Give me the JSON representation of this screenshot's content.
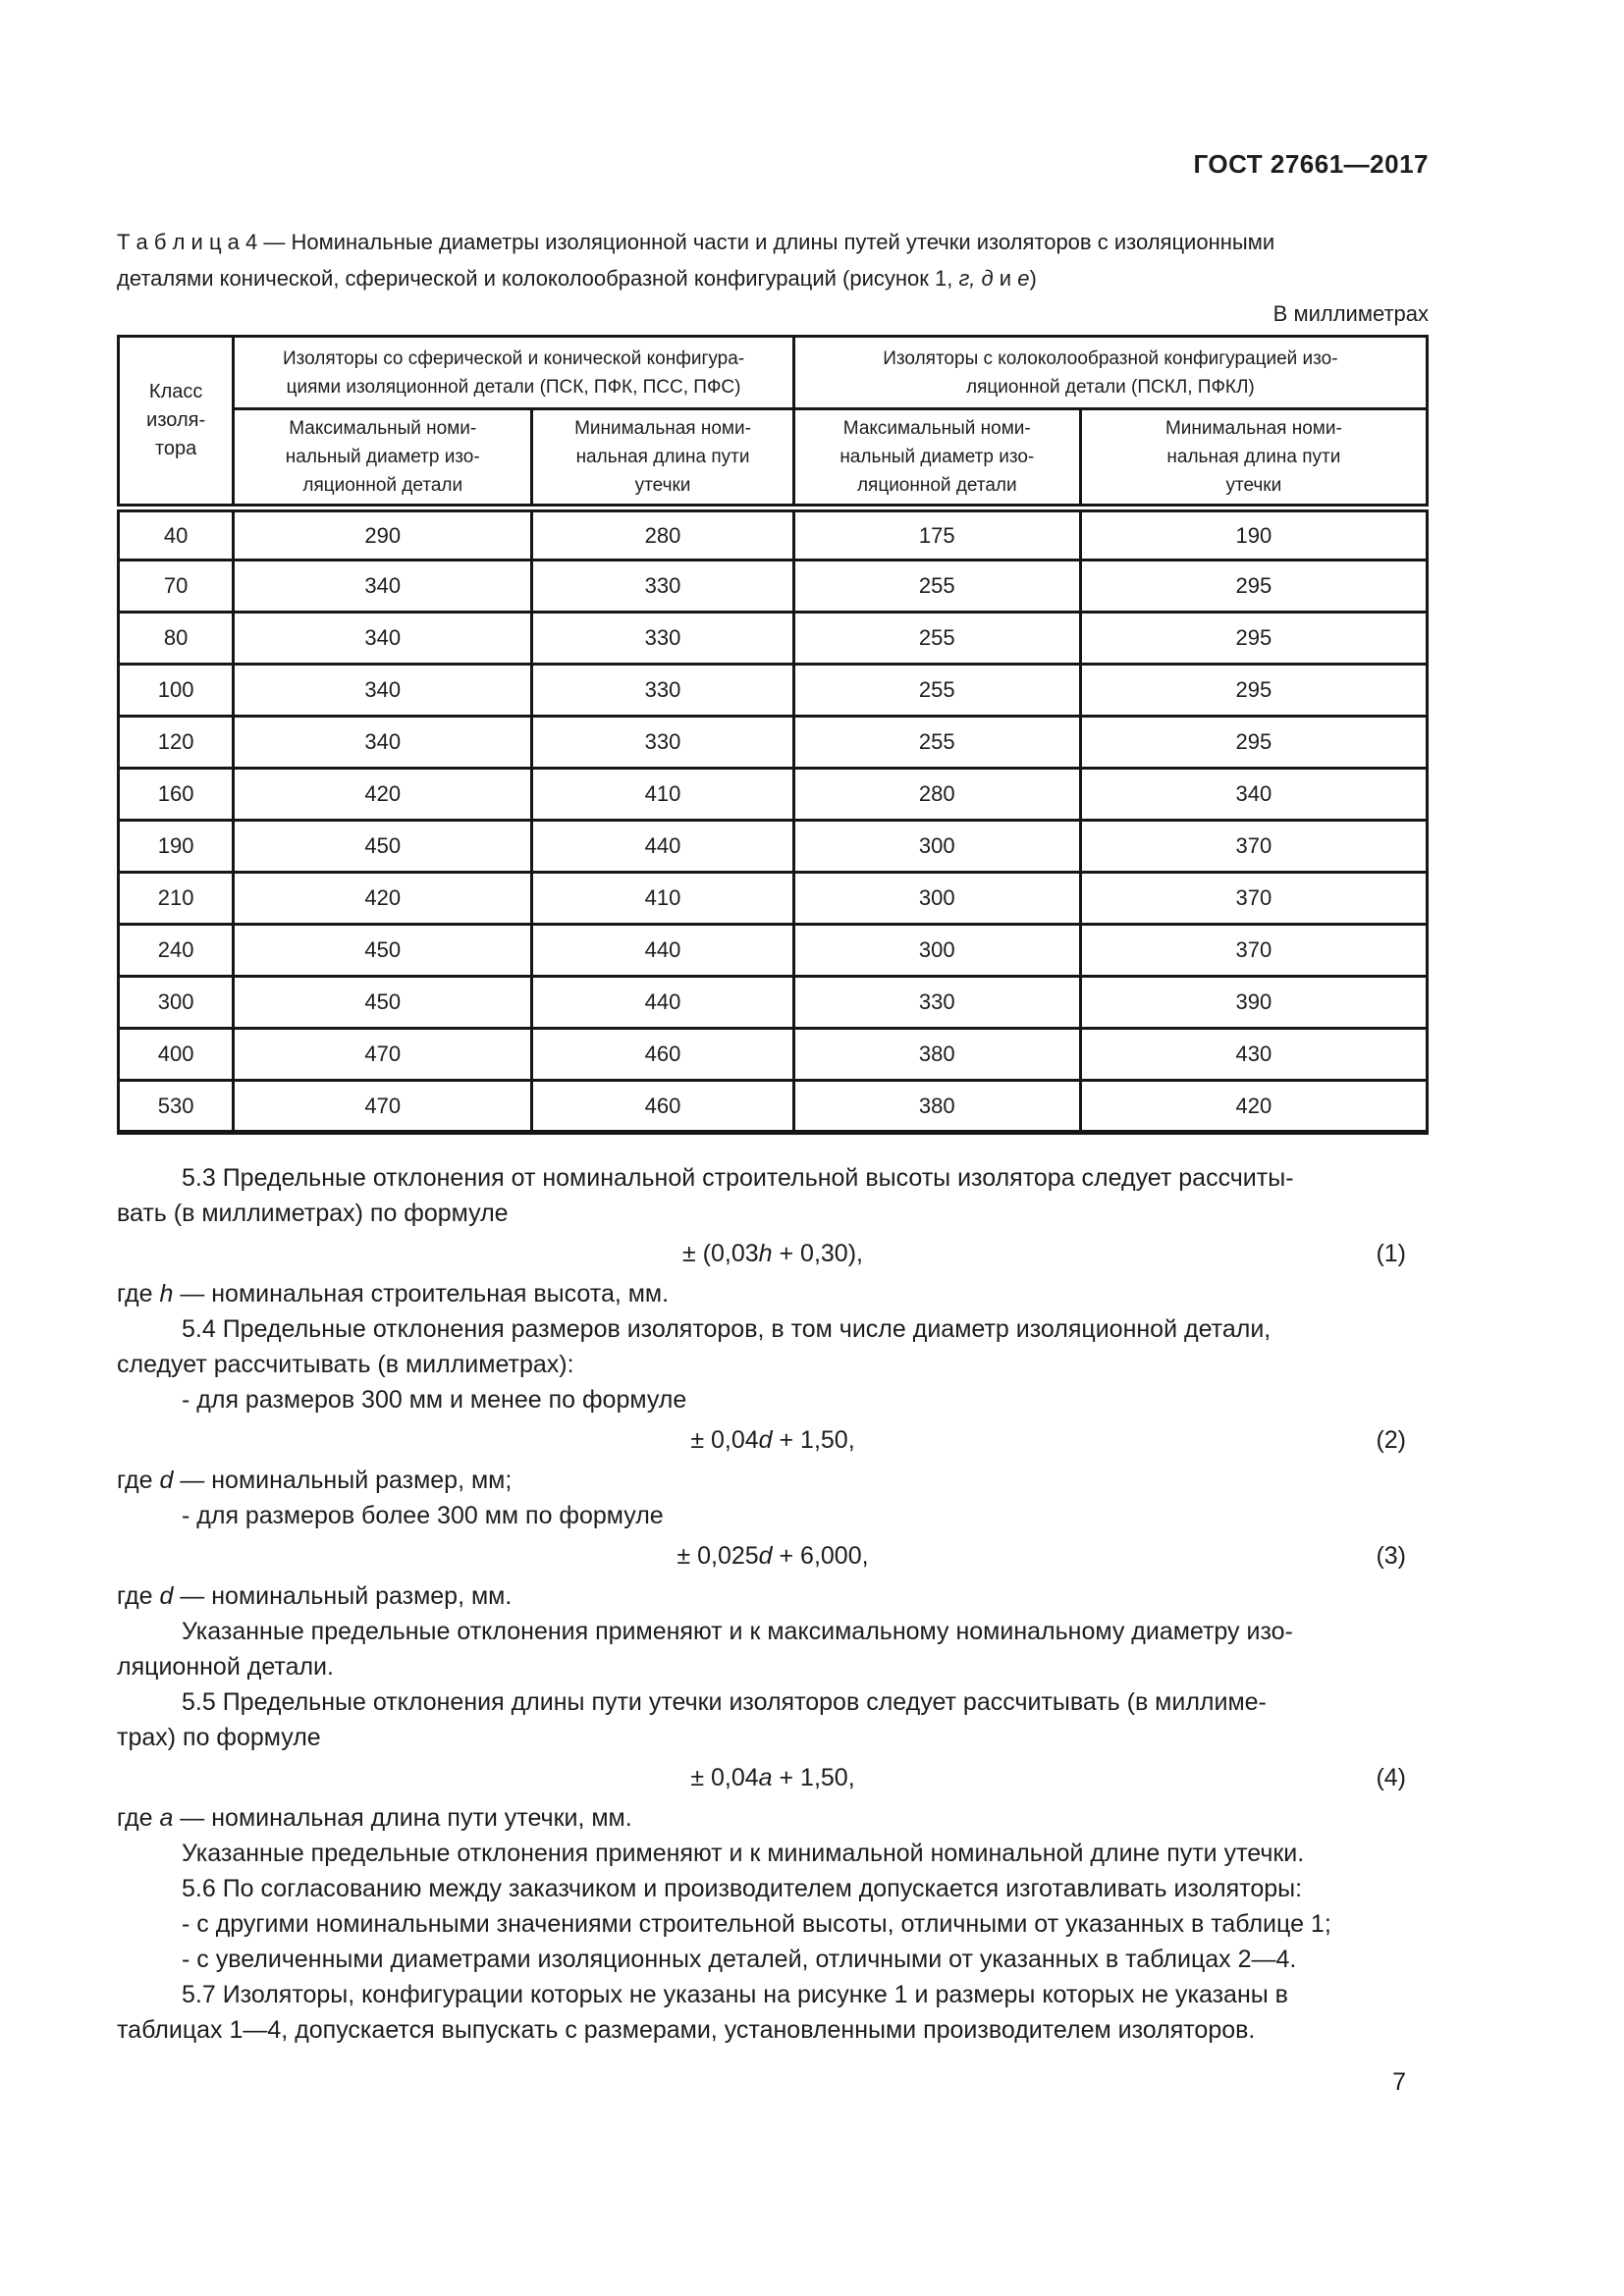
{
  "page": {
    "doc_number": "ГОСТ 27661—2017",
    "units_label": "В миллиметрах",
    "page_number": "7"
  },
  "caption": {
    "seg1": "Т а б л и ц а  4 — Номинальные диаметры изоляционной части и длины путей утечки изоляторов с изоляционными\nдеталями конической, сферической и колоколообразной конфигураций (рисунок 1, ",
    "it1": "г, д",
    "seg2": " и ",
    "it2": "е",
    "seg3": ")"
  },
  "table": {
    "col_class_header": "Класс\nизоля-\nтора",
    "group1": "Изоляторы со сферической и конической конфигура-\nциями изоляционной детали (ПСК, ПФК, ПСС, ПФС)",
    "group2": "Изоляторы с колоколообразной конфигурацией изо-\nляционной детали (ПСКЛ, ПФКЛ)",
    "sub_max": "Максимальный номи-\nнальный диаметр изо-\nляционной детали",
    "sub_min": "Минимальная номи-\nнальная длина пути\nутечки",
    "rows": [
      [
        "40",
        "290",
        "280",
        "175",
        "190"
      ],
      [
        "70",
        "340",
        "330",
        "255",
        "295"
      ],
      [
        "80",
        "340",
        "330",
        "255",
        "295"
      ],
      [
        "100",
        "340",
        "330",
        "255",
        "295"
      ],
      [
        "120",
        "340",
        "330",
        "255",
        "295"
      ],
      [
        "160",
        "420",
        "410",
        "280",
        "340"
      ],
      [
        "190",
        "450",
        "440",
        "300",
        "370"
      ],
      [
        "210",
        "420",
        "410",
        "300",
        "370"
      ],
      [
        "240",
        "450",
        "440",
        "300",
        "370"
      ],
      [
        "300",
        "450",
        "440",
        "330",
        "390"
      ],
      [
        "400",
        "470",
        "460",
        "380",
        "430"
      ],
      [
        "530",
        "470",
        "460",
        "380",
        "420"
      ]
    ]
  },
  "sections": {
    "p53": "5.3 Предельные отклонения от номинальной строительной высоты изолятора следует рассчиты-\nвать (в миллиметрах) по формуле",
    "where_h": {
      "pre": "где ",
      "var": "h",
      "post": " — номинальная строительная высота, мм."
    },
    "p54": "5.4 Предельные отклонения размеров изоляторов, в том числе диаметр изоляционной детали,\nследует рассчитывать (в миллиметрах):",
    "item_300_less": "- для размеров 300 мм и менее по формуле",
    "where_d1": {
      "pre": "где ",
      "var": "d",
      "post": " — номинальный размер, мм;"
    },
    "item_300_more": "- для размеров более 300 мм по формуле",
    "where_d2": {
      "pre": "где ",
      "var": "d",
      "post": " — номинальный размер, мм."
    },
    "note_max_diameter": "Указанные предельные отклонения применяют и к максимальному номинальному диаметру изо-\nляционной детали.",
    "p55": "5.5 Предельные отклонения длины пути утечки изоляторов следует рассчитывать (в миллиме-\nтрах) по формуле",
    "where_a": {
      "pre": "где ",
      "var": "a",
      "post": " — номинальная длина пути утечки, мм."
    },
    "note_min_length": "Указанные предельные отклонения применяют и к минимальной номинальной длине пути утечки.",
    "p56": "5.6 По согласованию между заказчиком и производителем допускается изготавливать изоляторы:",
    "item_other_height": "- с другими номинальными значениями строительной высоты, отличными от указанных в таблице 1;",
    "item_larger_diameters": "- с увеличенными диаметрами изоляционных деталей, отличными от указанных в таблицах 2—4.",
    "p57": "5.7 Изоляторы, конфигурации которых не указаны на рисунке 1 и размеры которых не указаны в\nтаблицах 1—4, допускается выпускать с размерами, установленными производителем изоляторов."
  },
  "formulas": {
    "f1": {
      "pre": "± (0,03",
      "var": "h",
      "post": " + 0,30),",
      "num": "(1)"
    },
    "f2": {
      "pre": "± 0,04",
      "var": "d",
      "post": " + 1,50,",
      "num": "(2)"
    },
    "f3": {
      "pre": "± 0,025",
      "var": "d",
      "post": " + 6,000,",
      "num": "(3)"
    },
    "f4": {
      "pre": "± 0,04",
      "var": "a",
      "post": " + 1,50,",
      "num": "(4)"
    }
  }
}
